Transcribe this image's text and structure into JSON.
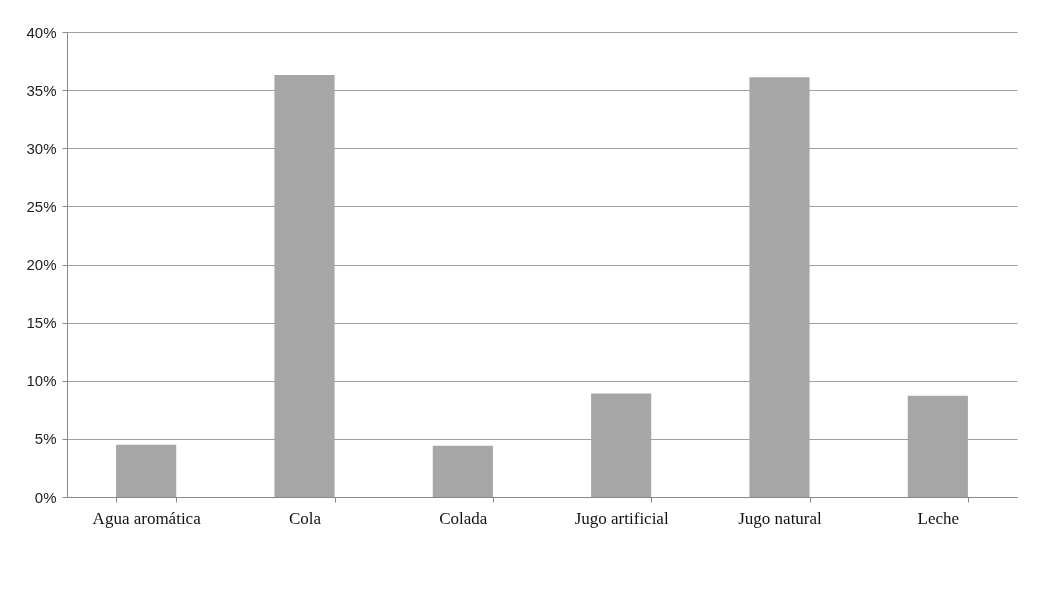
{
  "chart_data": {
    "type": "bar",
    "categories": [
      "Agua aromática",
      "Cola",
      "Colada",
      "Jugo artificial",
      "Jugo natural",
      "Leche"
    ],
    "values": [
      4.5,
      36.3,
      4.4,
      8.9,
      36.1,
      8.7
    ],
    "color": "#a6a6a6",
    "ylim": [
      0,
      40
    ],
    "yticks": [
      {
        "value": 0,
        "label": "0%"
      },
      {
        "value": 5,
        "label": "5%"
      },
      {
        "value": 10,
        "label": "10%"
      },
      {
        "value": 15,
        "label": "15%"
      },
      {
        "value": 20,
        "label": "20%"
      },
      {
        "value": 25,
        "label": "25%"
      },
      {
        "value": 30,
        "label": "30%"
      },
      {
        "value": 35,
        "label": "35%"
      },
      {
        "value": 40,
        "label": "40%"
      }
    ],
    "grid": "y"
  }
}
